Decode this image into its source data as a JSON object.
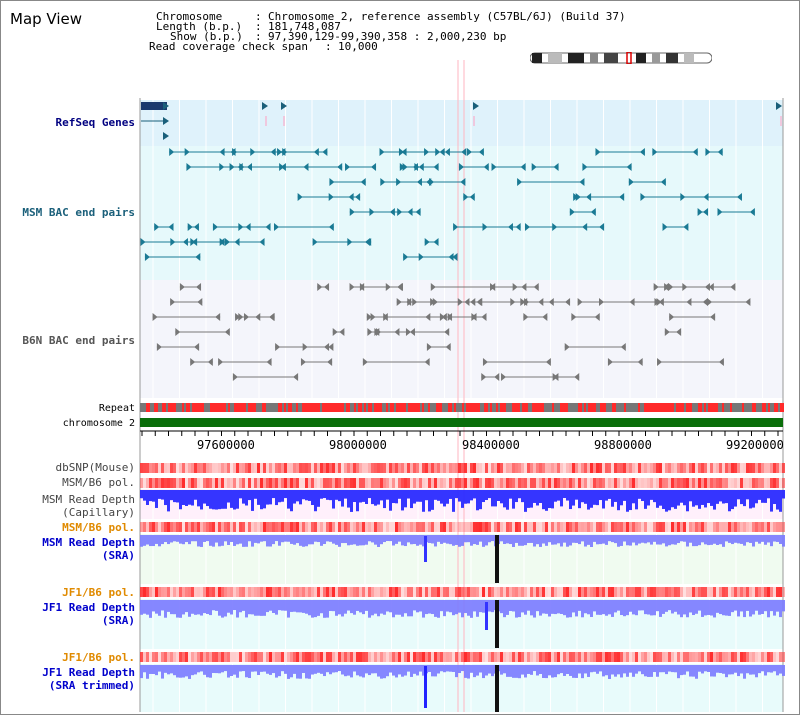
{
  "title": "Map View",
  "header": {
    "chromosome_label": "Chromosome",
    "chromosome_value": "Chromosome 2, reference assembly (C57BL/6J) (Build 37)",
    "length_label": "Length (b.p.)",
    "length_value": "181,748,087",
    "show_label": "Show (b.p.)",
    "show_value": "97,390,129-99,390,358 : 2,000,230 bp",
    "coverage_label": "Read coverage check span",
    "coverage_value": "10,000"
  },
  "tracks": {
    "refseq": "RefSeq Genes",
    "msm_bac": "MSM BAC end pairs",
    "b6n_bac": "B6N BAC end pairs",
    "repeat": "Repeat",
    "chromosome": "chromosome 2",
    "dbsnp": "dbSNP(Mouse)",
    "msm_b6_pol_1": "MSM/B6 pol.",
    "msm_depth_cap_1": "MSM Read Depth",
    "msm_depth_cap_2": "(Capillary)",
    "msm_b6_pol_2": "MSM/B6 pol.",
    "msm_depth_sra_1": "MSM Read Depth",
    "msm_depth_sra_2": "(SRA)",
    "jf1_b6_pol_1": "JF1/B6 pol.",
    "jf1_depth_sra_1": "JF1 Read Depth",
    "jf1_depth_sra_2": "(SRA)",
    "jf1_b6_pol_2": "JF1/B6 pol.",
    "jf1_depth_trim_1": "JF1 Read Depth",
    "jf1_depth_trim_2": "(SRA trimmed)"
  },
  "axis_ticks": [
    "97600000",
    "98000000",
    "98400000",
    "98800000",
    "99200000"
  ],
  "colors": {
    "refseq_bg": "#dff2fb",
    "msm_bac_bg": "#e6f9fb",
    "b6n_bac_bg": "#f4f5fb",
    "pol_red": "#ff2a2a",
    "depth_blue": "#2a2aff",
    "depth_bg_pink": "#fff0fb",
    "depth_bg_green": "#f0fbf0",
    "depth_bg_cyan": "#e8fbfb",
    "chrom_green": "#0a6e0a",
    "highlight_line": "#ffb6c1"
  }
}
